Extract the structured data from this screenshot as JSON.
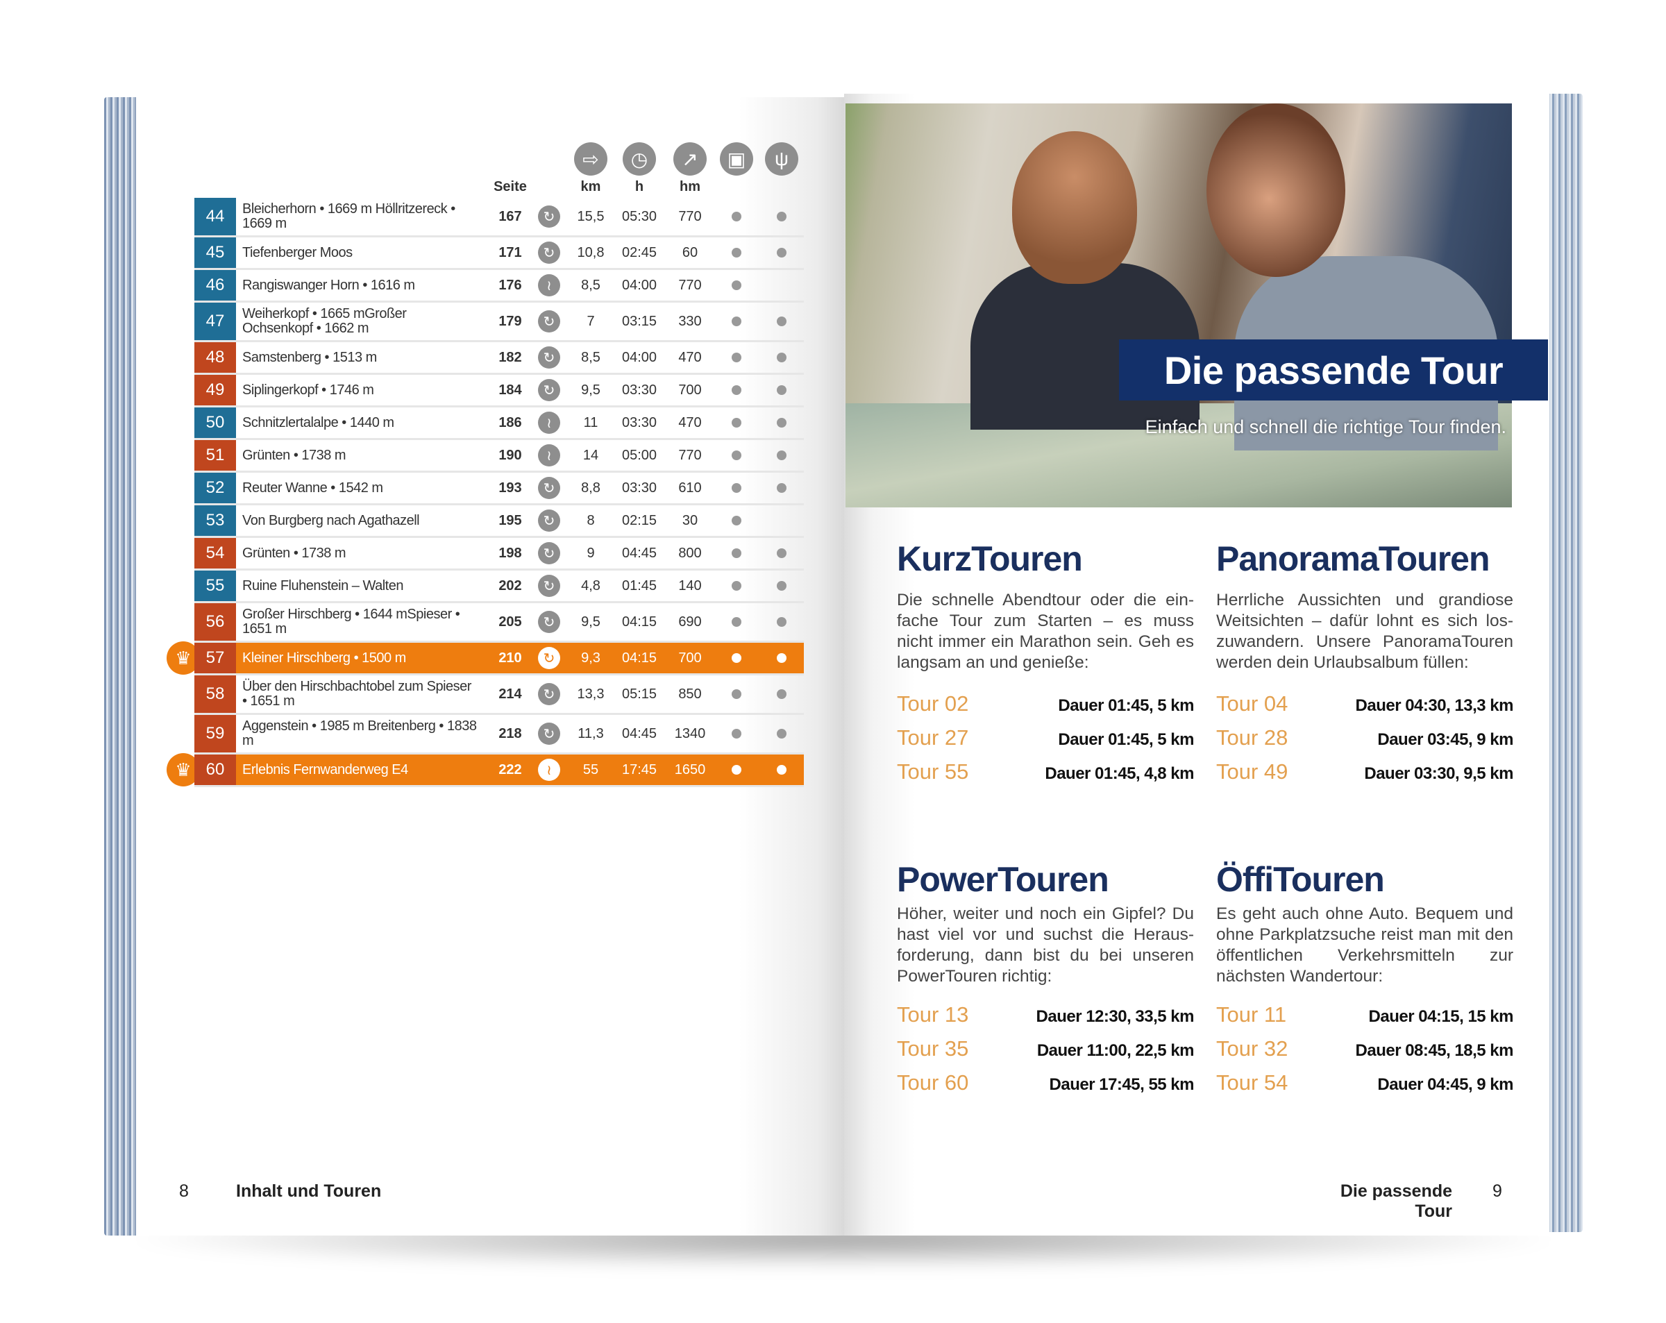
{
  "left_page": {
    "headers": {
      "seite": "Seite",
      "km": "km",
      "h": "h",
      "hm": "hm"
    },
    "header_icons": [
      "signpost-icon",
      "clock-icon",
      "ascent-arrow-icon",
      "bus-icon",
      "fork-knife-icon"
    ],
    "colors": {
      "blue": "#1f6e96",
      "red": "#c0461e",
      "highlight": "#ee7d0f"
    },
    "rows": [
      {
        "nr": "44",
        "name": "Bleicherhorn • 1669 m Höllritzereck • 1669 m",
        "seite": "167",
        "route": "loop",
        "km": "15,5",
        "h": "05:30",
        "hm": "770",
        "bus": true,
        "food": true,
        "color": "blue"
      },
      {
        "nr": "45",
        "name": "Tiefenberger Moos",
        "seite": "171",
        "route": "loop",
        "km": "10,8",
        "h": "02:45",
        "hm": "60",
        "bus": true,
        "food": true,
        "color": "blue"
      },
      {
        "nr": "46",
        "name": "Rangiswanger Horn • 1616 m",
        "seite": "176",
        "route": "one-way",
        "km": "8,5",
        "h": "04:00",
        "hm": "770",
        "bus": true,
        "food": false,
        "color": "blue"
      },
      {
        "nr": "47",
        "name": "Weiherkopf • 1665 mGroßer Ochsenkopf • 1662 m",
        "seite": "179",
        "route": "loop",
        "km": "7",
        "h": "03:15",
        "hm": "330",
        "bus": true,
        "food": true,
        "color": "blue"
      },
      {
        "nr": "48",
        "name": "Samstenberg • 1513 m",
        "seite": "182",
        "route": "loop",
        "km": "8,5",
        "h": "04:00",
        "hm": "470",
        "bus": true,
        "food": true,
        "color": "red"
      },
      {
        "nr": "49",
        "name": "Siplingerkopf • 1746 m",
        "seite": "184",
        "route": "loop",
        "km": "9,5",
        "h": "03:30",
        "hm": "700",
        "bus": true,
        "food": true,
        "color": "red"
      },
      {
        "nr": "50",
        "name": "Schnitzlertalalpe • 1440 m",
        "seite": "186",
        "route": "one-way",
        "km": "11",
        "h": "03:30",
        "hm": "470",
        "bus": true,
        "food": true,
        "color": "blue"
      },
      {
        "nr": "51",
        "name": "Grünten • 1738 m",
        "seite": "190",
        "route": "one-way",
        "km": "14",
        "h": "05:00",
        "hm": "770",
        "bus": true,
        "food": true,
        "color": "red"
      },
      {
        "nr": "52",
        "name": "Reuter Wanne • 1542 m",
        "seite": "193",
        "route": "loop",
        "km": "8,8",
        "h": "03:30",
        "hm": "610",
        "bus": true,
        "food": true,
        "color": "blue"
      },
      {
        "nr": "53",
        "name": "Von Burgberg nach Agathazell",
        "seite": "195",
        "route": "loop",
        "km": "8",
        "h": "02:15",
        "hm": "30",
        "bus": true,
        "food": false,
        "color": "blue"
      },
      {
        "nr": "54",
        "name": "Grünten • 1738 m",
        "seite": "198",
        "route": "loop",
        "km": "9",
        "h": "04:45",
        "hm": "800",
        "bus": true,
        "food": true,
        "color": "red"
      },
      {
        "nr": "55",
        "name": "Ruine Fluhenstein – Walten",
        "seite": "202",
        "route": "loop",
        "km": "4,8",
        "h": "01:45",
        "hm": "140",
        "bus": true,
        "food": true,
        "color": "blue"
      },
      {
        "nr": "56",
        "name": "Großer Hirschberg • 1644 mSpieser • 1651 m",
        "seite": "205",
        "route": "loop",
        "km": "9,5",
        "h": "04:15",
        "hm": "690",
        "bus": true,
        "food": true,
        "color": "red"
      },
      {
        "nr": "57",
        "name": "Kleiner Hirschberg • 1500 m",
        "seite": "210",
        "route": "loop",
        "km": "9,3",
        "h": "04:15",
        "hm": "700",
        "bus": true,
        "food": true,
        "color": "red",
        "highlight": true
      },
      {
        "nr": "58",
        "name": "Über den Hirschbachtobel zum Spieser • 1651 m",
        "seite": "214",
        "route": "loop",
        "km": "13,3",
        "h": "05:15",
        "hm": "850",
        "bus": true,
        "food": true,
        "color": "red"
      },
      {
        "nr": "59",
        "name": "Aggenstein • 1985 m Breitenberg • 1838 m",
        "seite": "218",
        "route": "loop",
        "km": "11,3",
        "h": "04:45",
        "hm": "1340",
        "bus": true,
        "food": true,
        "color": "red"
      },
      {
        "nr": "60",
        "name": "Erlebnis Fernwanderweg E4",
        "seite": "222",
        "route": "one-way",
        "km": "55",
        "h": "17:45",
        "hm": "1650",
        "bus": true,
        "food": true,
        "color": "red",
        "highlight": true
      }
    ],
    "footer": {
      "page": "8",
      "title": "Inhalt und Touren"
    }
  },
  "right_page": {
    "banner_title": "Die passende Tour",
    "banner_subtitle": "Einfach und schnell die richtige Tour finden.",
    "sections": [
      {
        "title": "KurzTouren",
        "text": "Die schnelle Abendtour oder die ein­fache Tour zum Starten – es muss nicht immer ein Marathon sein. Geh es langsam an und genieße:",
        "tours": [
          {
            "tour": "Tour 02",
            "info": "Dauer 01:45, 5 km"
          },
          {
            "tour": "Tour 27",
            "info": "Dauer 01:45, 5 km"
          },
          {
            "tour": "Tour 55",
            "info": "Dauer 01:45, 4,8 km"
          }
        ]
      },
      {
        "title": "PanoramaTouren",
        "text": "Herrliche Aussichten und grandiose Weitsichten – dafür lohnt es sich los­zuwandern. Unsere PanoramaTouren werden dein Urlaubsalbum füllen:",
        "tours": [
          {
            "tour": "Tour 04",
            "info": "Dauer 04:30, 13,3 km"
          },
          {
            "tour": "Tour 28",
            "info": "Dauer 03:45, 9 km"
          },
          {
            "tour": "Tour 49",
            "info": "Dauer 03:30, 9,5 km"
          }
        ]
      },
      {
        "title": "PowerTouren",
        "text": "Höher, weiter und noch ein Gipfel? Du hast viel vor und suchst die Heraus­forderung, dann bist du bei unseren PowerTouren richtig:",
        "tours": [
          {
            "tour": "Tour 13",
            "info": "Dauer 12:30, 33,5 km"
          },
          {
            "tour": "Tour 35",
            "info": "Dauer 11:00, 22,5 km"
          },
          {
            "tour": "Tour 60",
            "info": "Dauer 17:45, 55 km"
          }
        ]
      },
      {
        "title": "ÖffiTouren",
        "text": "Es geht auch ohne Auto. Bequem und ohne Parkplatzsuche reist man mit den öffentlichen Verkehrsmitteln zur nächsten Wandertour:",
        "tours": [
          {
            "tour": "Tour 11",
            "info": "Dauer 04:15, 15 km"
          },
          {
            "tour": "Tour 32",
            "info": "Dauer 08:45, 18,5 km"
          },
          {
            "tour": "Tour 54",
            "info": "Dauer 04:45, 9 km"
          }
        ]
      }
    ],
    "footer": {
      "page": "9",
      "title": "Die passende Tour"
    }
  }
}
